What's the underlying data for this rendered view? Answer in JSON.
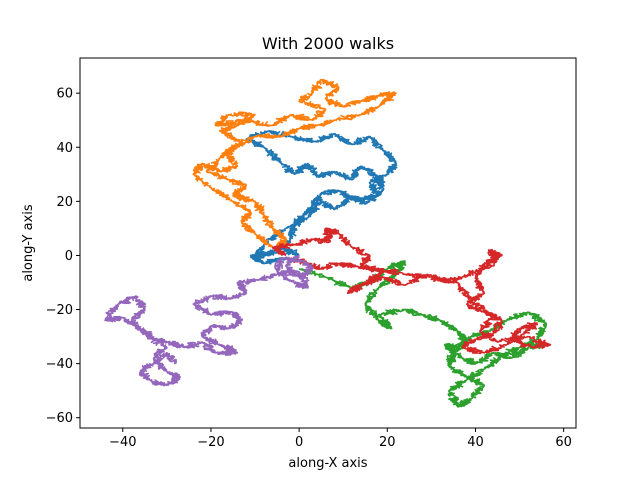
{
  "chart_data": {
    "type": "line",
    "title": "With 2000 walks",
    "xlabel": "along-X axis",
    "ylabel": "along-Y axis",
    "xlim": [
      -49.7,
      62.8
    ],
    "ylim": [
      -63.8,
      73.0
    ],
    "xticks": [
      -40,
      -20,
      0,
      20,
      40,
      60
    ],
    "yticks": [
      -60,
      -40,
      -20,
      0,
      20,
      40,
      60
    ],
    "grid": false,
    "series": [
      {
        "color": "#1f77b4",
        "steps": 2000,
        "waypoints": [
          [
            0,
            0
          ],
          [
            -4,
            3
          ],
          [
            -10,
            -2
          ],
          [
            -8,
            4
          ],
          [
            -3,
            10
          ],
          [
            2,
            14
          ],
          [
            5,
            20
          ],
          [
            8,
            17
          ],
          [
            12,
            22
          ],
          [
            15,
            19
          ],
          [
            19,
            24
          ],
          [
            18,
            29
          ],
          [
            14,
            33
          ],
          [
            12,
            28
          ],
          [
            8,
            31
          ],
          [
            4,
            29
          ],
          [
            2,
            34
          ],
          [
            -1,
            30
          ],
          [
            -4,
            34
          ],
          [
            -8,
            40
          ],
          [
            -12,
            43
          ],
          [
            -7,
            46
          ],
          [
            -2,
            44
          ],
          [
            4,
            42
          ],
          [
            8,
            45
          ],
          [
            12,
            41
          ],
          [
            16,
            44
          ],
          [
            19,
            39
          ],
          [
            22,
            34
          ],
          [
            20,
            30
          ],
          [
            16,
            27
          ],
          [
            18,
            22
          ],
          [
            13,
            20
          ],
          [
            9,
            24
          ],
          [
            5,
            23
          ],
          [
            3,
            18
          ],
          [
            1,
            15
          ],
          [
            -1,
            11
          ],
          [
            -2,
            6
          ],
          [
            -5,
            1
          ],
          [
            -11,
            0
          ],
          [
            -8,
            -3
          ],
          [
            -3,
            -1
          ]
        ]
      },
      {
        "color": "#ff7f0e",
        "steps": 2000,
        "waypoints": [
          [
            -6,
            3
          ],
          [
            -10,
            8
          ],
          [
            -13,
            12
          ],
          [
            -11,
            16
          ],
          [
            -15,
            20
          ],
          [
            -20,
            25
          ],
          [
            -24,
            30
          ],
          [
            -22,
            34
          ],
          [
            -18,
            31
          ],
          [
            -14,
            33
          ],
          [
            -17,
            38
          ],
          [
            -13,
            42
          ],
          [
            -18,
            46
          ],
          [
            -14,
            48
          ],
          [
            -10,
            52
          ],
          [
            -16,
            52
          ],
          [
            -19,
            48
          ],
          [
            -12,
            50
          ],
          [
            -6,
            48
          ],
          [
            -2,
            52
          ],
          [
            3,
            50
          ],
          [
            6,
            54
          ],
          [
            0,
            57
          ],
          [
            3,
            60
          ],
          [
            5,
            65
          ],
          [
            9,
            62
          ],
          [
            6,
            58
          ],
          [
            10,
            55
          ],
          [
            14,
            57
          ],
          [
            18,
            59
          ],
          [
            22,
            60
          ],
          [
            18,
            55
          ],
          [
            14,
            52
          ],
          [
            8,
            50
          ],
          [
            4,
            48
          ],
          [
            0,
            47
          ],
          [
            -4,
            44
          ],
          [
            -10,
            44
          ],
          [
            -14,
            40
          ],
          [
            -18,
            36
          ],
          [
            -21,
            31
          ],
          [
            -16,
            28
          ],
          [
            -12,
            26
          ],
          [
            -15,
            22
          ],
          [
            -10,
            20
          ],
          [
            -8,
            15
          ],
          [
            -6,
            10
          ],
          [
            -3,
            6
          ],
          [
            -5,
            3
          ]
        ]
      },
      {
        "color": "#2ca02c",
        "steps": 2000,
        "waypoints": [
          [
            0,
            -5
          ],
          [
            6,
            -8
          ],
          [
            12,
            -12
          ],
          [
            16,
            -10
          ],
          [
            20,
            -5
          ],
          [
            24,
            -2
          ],
          [
            22,
            -7
          ],
          [
            18,
            -12
          ],
          [
            15,
            -18
          ],
          [
            18,
            -24
          ],
          [
            21,
            -27
          ],
          [
            18,
            -22
          ],
          [
            24,
            -20
          ],
          [
            28,
            -22
          ],
          [
            32,
            -24
          ],
          [
            36,
            -28
          ],
          [
            38,
            -32
          ],
          [
            35,
            -36
          ],
          [
            34,
            -41
          ],
          [
            38,
            -45
          ],
          [
            42,
            -48
          ],
          [
            39,
            -53
          ],
          [
            36,
            -56
          ],
          [
            34,
            -50
          ],
          [
            38,
            -46
          ],
          [
            42,
            -42
          ],
          [
            46,
            -37
          ],
          [
            50,
            -34
          ],
          [
            54,
            -31
          ],
          [
            56,
            -25
          ],
          [
            52,
            -21
          ],
          [
            47,
            -24
          ],
          [
            43,
            -28
          ],
          [
            39,
            -30
          ],
          [
            36,
            -34
          ],
          [
            33,
            -33
          ],
          [
            37,
            -38
          ],
          [
            40,
            -40
          ],
          [
            44,
            -36
          ],
          [
            48,
            -38
          ],
          [
            52,
            -34
          ],
          [
            56,
            -33
          ]
        ]
      },
      {
        "color": "#d62728",
        "steps": 2000,
        "waypoints": [
          [
            -3,
            0
          ],
          [
            -6,
            3
          ],
          [
            -1,
            4
          ],
          [
            3,
            6
          ],
          [
            7,
            5
          ],
          [
            6,
            10
          ],
          [
            9,
            8
          ],
          [
            12,
            3
          ],
          [
            16,
            0
          ],
          [
            14,
            -4
          ],
          [
            19,
            -6
          ],
          [
            15,
            -10
          ],
          [
            11,
            -14
          ],
          [
            14,
            -11
          ],
          [
            19,
            -8
          ],
          [
            24,
            -11
          ],
          [
            29,
            -7
          ],
          [
            33,
            -10
          ],
          [
            37,
            -8
          ],
          [
            42,
            -5
          ],
          [
            45,
            -1
          ],
          [
            43,
            2
          ],
          [
            46,
            0
          ],
          [
            42,
            -3
          ],
          [
            40,
            -8
          ],
          [
            42,
            -14
          ],
          [
            38,
            -18
          ],
          [
            42,
            -21
          ],
          [
            46,
            -24
          ],
          [
            44,
            -29
          ],
          [
            40,
            -31
          ],
          [
            37,
            -34
          ],
          [
            42,
            -36
          ],
          [
            47,
            -33
          ],
          [
            51,
            -29
          ],
          [
            54,
            -25
          ],
          [
            50,
            -27
          ],
          [
            48,
            -31
          ],
          [
            53,
            -34
          ],
          [
            57,
            -33
          ],
          [
            52,
            -30
          ],
          [
            45,
            -32
          ],
          [
            41,
            -28
          ],
          [
            44,
            -22
          ],
          [
            39,
            -17
          ],
          [
            36,
            -10
          ],
          [
            30,
            -8
          ],
          [
            24,
            -7
          ],
          [
            18,
            -5
          ],
          [
            13,
            -4
          ],
          [
            9,
            -3
          ],
          [
            5,
            -5
          ],
          [
            2,
            -3
          ],
          [
            -2,
            -1
          ]
        ]
      },
      {
        "color": "#9467bd",
        "steps": 2000,
        "waypoints": [
          [
            0,
            0
          ],
          [
            -3,
            -4
          ],
          [
            0,
            -8
          ],
          [
            3,
            -5
          ],
          [
            1,
            -2
          ],
          [
            -4,
            -1
          ],
          [
            -5,
            -6
          ],
          [
            -1,
            -10
          ],
          [
            2,
            -12
          ],
          [
            0,
            -6
          ],
          [
            -5,
            -7
          ],
          [
            -9,
            -9
          ],
          [
            -14,
            -10
          ],
          [
            -12,
            -14
          ],
          [
            -16,
            -16
          ],
          [
            -20,
            -15
          ],
          [
            -24,
            -18
          ],
          [
            -20,
            -22
          ],
          [
            -15,
            -21
          ],
          [
            -13,
            -24
          ],
          [
            -16,
            -27
          ],
          [
            -20,
            -26
          ],
          [
            -22,
            -30
          ],
          [
            -18,
            -33
          ],
          [
            -14,
            -36
          ],
          [
            -19,
            -36
          ],
          [
            -22,
            -32
          ],
          [
            -26,
            -34
          ],
          [
            -30,
            -32
          ],
          [
            -33,
            -31
          ],
          [
            -36,
            -27
          ],
          [
            -40,
            -23
          ],
          [
            -44,
            -24
          ],
          [
            -41,
            -18
          ],
          [
            -37,
            -15
          ],
          [
            -35,
            -20
          ],
          [
            -38,
            -24
          ],
          [
            -35,
            -29
          ],
          [
            -30,
            -34
          ],
          [
            -33,
            -38
          ],
          [
            -30,
            -43
          ],
          [
            -27,
            -45
          ],
          [
            -30,
            -48
          ],
          [
            -34,
            -46
          ],
          [
            -36,
            -43
          ],
          [
            -33,
            -40
          ],
          [
            -30,
            -36
          ],
          [
            -28,
            -40
          ]
        ]
      }
    ]
  }
}
